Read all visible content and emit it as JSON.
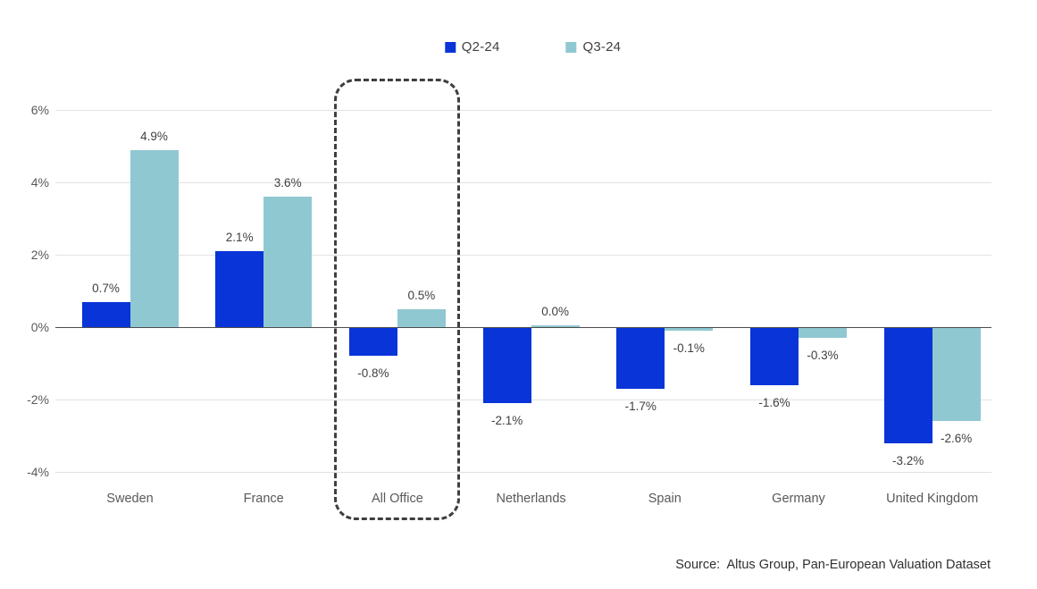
{
  "legend": {
    "items": [
      {
        "label": "Q2-24",
        "color": "#0834D8"
      },
      {
        "label": "Q3-24",
        "color": "#90C8D2"
      }
    ]
  },
  "source": {
    "text": "Source:  Altus Group, Pan-European Valuation Dataset"
  },
  "chart_data": {
    "type": "bar",
    "categories": [
      "Sweden",
      "France",
      "All Office",
      "Netherlands",
      "Spain",
      "Germany",
      "United Kingdom"
    ],
    "series": [
      {
        "name": "Q2-24",
        "color": "#0834D8",
        "values": [
          0.7,
          2.1,
          -0.8,
          -2.1,
          -1.7,
          -1.6,
          -3.2
        ]
      },
      {
        "name": "Q3-24",
        "color": "#90C8D2",
        "values": [
          4.9,
          3.6,
          0.5,
          0.0,
          -0.1,
          -0.3,
          -2.6
        ]
      }
    ],
    "value_labels": [
      [
        "0.7%",
        "2.1%",
        "-0.8%",
        "-2.1%",
        "-1.7%",
        "-1.6%",
        "-3.2%"
      ],
      [
        "4.9%",
        "3.6%",
        "0.5%",
        "0.0%",
        "-0.1%",
        "-0.3%",
        "-2.6%"
      ]
    ],
    "y_ticks": [
      6,
      4,
      2,
      0,
      -2,
      -4
    ],
    "y_tick_labels": [
      "6%",
      "4%",
      "2%",
      "0%",
      "-2%",
      "-4%"
    ],
    "ylim": [
      -4.6,
      6.8
    ],
    "grid": true,
    "legend_position": "top",
    "highlighted_category": "All Office",
    "title": "",
    "xlabel": "",
    "ylabel": ""
  }
}
